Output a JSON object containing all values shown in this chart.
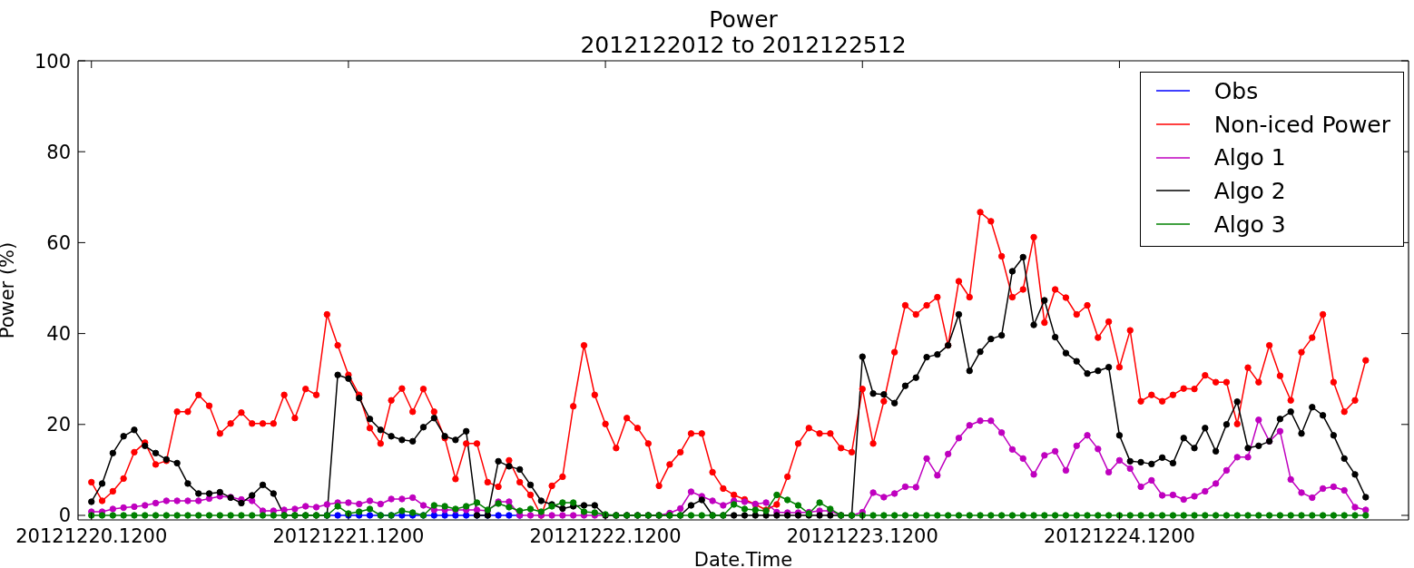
{
  "chart_data": {
    "type": "line",
    "title": "Power",
    "subtitle": "2012122012 to 2012122512",
    "xlabel": "Date.Time",
    "ylabel": "Power (%)",
    "x": [
      "2012-12-20T12:00",
      "2012-12-20T13:00",
      "2012-12-20T14:00",
      "2012-12-20T15:00",
      "2012-12-20T16:00",
      "2012-12-20T17:00",
      "2012-12-20T18:00",
      "2012-12-20T19:00",
      "2012-12-20T20:00",
      "2012-12-20T21:00",
      "2012-12-20T22:00",
      "2012-12-20T23:00",
      "2012-12-21T00:00",
      "2012-12-21T01:00",
      "2012-12-21T02:00",
      "2012-12-21T03:00",
      "2012-12-21T04:00",
      "2012-12-21T05:00",
      "2012-12-21T06:00",
      "2012-12-21T07:00",
      "2012-12-21T08:00",
      "2012-12-21T09:00",
      "2012-12-21T10:00",
      "2012-12-21T11:00",
      "2012-12-21T12:00",
      "2012-12-21T13:00",
      "2012-12-21T14:00",
      "2012-12-21T15:00",
      "2012-12-21T16:00",
      "2012-12-21T17:00",
      "2012-12-21T18:00",
      "2012-12-21T19:00",
      "2012-12-21T20:00",
      "2012-12-21T21:00",
      "2012-12-21T22:00",
      "2012-12-21T23:00",
      "2012-12-22T00:00",
      "2012-12-22T01:00",
      "2012-12-22T02:00",
      "2012-12-22T03:00",
      "2012-12-22T04:00",
      "2012-12-22T05:00",
      "2012-12-22T06:00",
      "2012-12-22T07:00",
      "2012-12-22T08:00",
      "2012-12-22T09:00",
      "2012-12-22T10:00",
      "2012-12-22T11:00",
      "2012-12-22T12:00",
      "2012-12-22T13:00",
      "2012-12-22T14:00",
      "2012-12-22T15:00",
      "2012-12-22T16:00",
      "2012-12-22T17:00",
      "2012-12-22T18:00",
      "2012-12-22T19:00",
      "2012-12-22T20:00",
      "2012-12-22T21:00",
      "2012-12-22T22:00",
      "2012-12-22T23:00",
      "2012-12-23T00:00",
      "2012-12-23T01:00",
      "2012-12-23T02:00",
      "2012-12-23T03:00",
      "2012-12-23T04:00",
      "2012-12-23T05:00",
      "2012-12-23T06:00",
      "2012-12-23T07:00",
      "2012-12-23T08:00",
      "2012-12-23T09:00",
      "2012-12-23T10:00",
      "2012-12-23T11:00",
      "2012-12-23T12:00",
      "2012-12-23T13:00",
      "2012-12-23T14:00",
      "2012-12-23T15:00",
      "2012-12-23T16:00",
      "2012-12-23T17:00",
      "2012-12-23T18:00",
      "2012-12-23T19:00",
      "2012-12-23T20:00",
      "2012-12-23T21:00",
      "2012-12-23T22:00",
      "2012-12-23T23:00",
      "2012-12-24T00:00",
      "2012-12-24T01:00",
      "2012-12-24T02:00",
      "2012-12-24T03:00",
      "2012-12-24T04:00",
      "2012-12-24T05:00",
      "2012-12-24T06:00",
      "2012-12-24T07:00",
      "2012-12-24T08:00",
      "2012-12-24T09:00",
      "2012-12-24T10:00",
      "2012-12-24T11:00",
      "2012-12-24T12:00",
      "2012-12-24T13:00",
      "2012-12-24T14:00",
      "2012-12-24T15:00",
      "2012-12-24T16:00",
      "2012-12-24T17:00",
      "2012-12-24T18:00",
      "2012-12-24T19:00",
      "2012-12-24T20:00",
      "2012-12-24T21:00",
      "2012-12-24T22:00",
      "2012-12-24T23:00",
      "2012-12-25T00:00",
      "2012-12-25T01:00",
      "2012-12-25T02:00",
      "2012-12-25T03:00",
      "2012-12-25T04:00",
      "2012-12-25T05:00",
      "2012-12-25T06:00",
      "2012-12-25T07:00",
      "2012-12-25T08:00",
      "2012-12-25T09:00",
      "2012-12-25T10:00",
      "2012-12-25T11:00"
    ],
    "xlim": [
      "2012-12-20T10:45",
      "2012-12-25T15:00"
    ],
    "xticks": [
      {
        "value": "2012-12-20T12:00",
        "label": "20121220.1200"
      },
      {
        "value": "2012-12-21T12:00",
        "label": "20121221.1200"
      },
      {
        "value": "2012-12-22T12:00",
        "label": "20121222.1200"
      },
      {
        "value": "2012-12-23T12:00",
        "label": "20121223.1200"
      },
      {
        "value": "2012-12-24T12:00",
        "label": "20121224.1200"
      }
    ],
    "ylim": [
      -1,
      100
    ],
    "yticks": [
      0,
      20,
      40,
      60,
      80,
      100
    ],
    "legend": "top right",
    "marker": "circle",
    "series": [
      {
        "name": "Obs",
        "color": "#0000ff",
        "values": [
          null,
          null,
          null,
          null,
          null,
          null,
          null,
          null,
          null,
          null,
          null,
          null,
          null,
          null,
          null,
          null,
          null,
          null,
          null,
          null,
          null,
          null,
          0,
          0,
          0,
          0,
          0,
          0,
          0,
          0,
          0,
          0,
          0,
          0,
          0,
          0,
          0,
          0,
          0,
          0,
          0,
          null,
          null,
          null,
          null,
          null,
          null,
          null,
          null,
          null,
          null,
          null,
          null,
          null,
          null,
          null,
          null,
          null,
          null,
          null,
          null,
          null,
          null,
          null,
          null,
          null,
          null,
          null,
          null,
          null,
          null,
          null,
          null,
          null,
          null,
          null,
          null,
          null,
          null,
          null,
          null,
          null,
          null,
          null,
          null,
          null,
          null,
          null,
          null,
          null,
          null,
          null,
          null,
          null,
          null,
          null,
          null,
          null,
          null,
          null,
          null,
          null,
          null,
          null,
          null,
          null,
          null,
          null,
          null,
          null,
          null,
          null,
          null,
          null,
          null,
          null,
          null,
          null,
          null,
          null
        ]
      },
      {
        "name": "Non-iced Power",
        "color": "#ff0000",
        "values": [
          7.3,
          3.2,
          5.3,
          8.1,
          13.9,
          16.0,
          11.2,
          12.0,
          22.8,
          22.8,
          26.5,
          24.1,
          18.0,
          20.2,
          22.6,
          20.2,
          20.2,
          20.2,
          26.5,
          21.4,
          27.8,
          26.5,
          44.2,
          37.4,
          30.9,
          26.5,
          19.2,
          15.8,
          25.3,
          27.9,
          22.8,
          27.8,
          22.8,
          17.0,
          8.0,
          15.8,
          15.8,
          7.3,
          6.3,
          12.1,
          7.3,
          4.5,
          0,
          6.5,
          8.5,
          24.0,
          37.4,
          26.5,
          20.1,
          14.8,
          21.4,
          19.2,
          15.8,
          6.5,
          11.2,
          13.9,
          18.0,
          18.0,
          9.5,
          5.9,
          4.5,
          3.5,
          2.4,
          1.2,
          2.4,
          8.5,
          15.8,
          19.2,
          18.0,
          18.0,
          14.8,
          13.9,
          27.8,
          15.8,
          25.1,
          35.9,
          46.2,
          44.2,
          46.2,
          48.0,
          37.4,
          51.5,
          48.0,
          66.7,
          64.7,
          57.0,
          48.0,
          49.7,
          61.2,
          42.4,
          49.7,
          47.9,
          44.2,
          46.2,
          39.1,
          42.6,
          32.6,
          40.7,
          25.1,
          26.5,
          25.1,
          26.5,
          27.9,
          27.8,
          30.8,
          29.3,
          29.3,
          20.1,
          32.5,
          29.3,
          37.4,
          30.7,
          25.3,
          35.9,
          39.1,
          44.2,
          29.3,
          22.8,
          25.3,
          34.1
        ]
      },
      {
        "name": "Algo 1",
        "color": "#bf00bf",
        "values": [
          0.8,
          0.8,
          1.4,
          1.7,
          1.9,
          2.2,
          2.7,
          3.2,
          3.2,
          3.2,
          3.2,
          3.7,
          4.2,
          4.0,
          3.5,
          3.2,
          1.0,
          1.0,
          1.2,
          1.4,
          2.0,
          1.8,
          2.4,
          2.8,
          2.8,
          2.5,
          3.2,
          2.5,
          3.6,
          3.6,
          3.9,
          2.2,
          1.2,
          1.2,
          1.2,
          1.2,
          1.2,
          1.0,
          3.0,
          3.0,
          0,
          0,
          0,
          0,
          0,
          0,
          0,
          0,
          0,
          0,
          0,
          0,
          0,
          0,
          0.5,
          1.5,
          5.2,
          4.2,
          3.2,
          2.2,
          3.2,
          3.0,
          2.5,
          2.8,
          0.7,
          0.6,
          0.6,
          0.7,
          1.0,
          1.0,
          0,
          0,
          0.7,
          5.0,
          4.0,
          4.8,
          6.3,
          6.2,
          12.5,
          8.8,
          13.5,
          17.0,
          19.8,
          20.8,
          20.8,
          18.2,
          14.5,
          12.5,
          9.0,
          13.2,
          14.1,
          9.9,
          15.3,
          17.6,
          14.6,
          9.5,
          12.1,
          10.3,
          6.3,
          7.7,
          4.4,
          4.5,
          3.5,
          4.2,
          5.3,
          7.0,
          9.9,
          12.8,
          12.8,
          21.0,
          16.3,
          18.5,
          7.9,
          5.0,
          3.9,
          5.9,
          6.3,
          5.5,
          1.8,
          1.2
        ]
      },
      {
        "name": "Algo 2",
        "color": "#000000",
        "values": [
          3.0,
          7.0,
          13.7,
          17.4,
          18.8,
          15.3,
          13.7,
          12.3,
          11.5,
          7.0,
          4.8,
          4.8,
          5.1,
          3.9,
          2.7,
          4.4,
          6.7,
          4.8,
          0,
          0,
          0,
          0,
          0,
          30.9,
          30.1,
          25.8,
          21.2,
          18.8,
          17.4,
          16.6,
          16.3,
          19.4,
          21.4,
          17.4,
          16.6,
          18.5,
          0,
          0,
          11.9,
          10.8,
          10.1,
          6.7,
          3.2,
          2.4,
          1.5,
          2.0,
          2.2,
          2.2,
          0,
          0,
          0,
          0,
          0,
          0,
          0,
          0,
          2.2,
          3.4,
          0,
          0,
          0,
          0,
          0,
          0,
          0,
          0,
          0,
          0,
          0,
          0,
          0,
          0,
          34.9,
          26.8,
          26.6,
          24.7,
          28.5,
          30.3,
          34.8,
          35.4,
          37.4,
          44.2,
          31.8,
          36.0,
          38.8,
          39.6,
          53.7,
          56.8,
          41.9,
          47.3,
          39.2,
          35.7,
          33.9,
          31.2,
          31.8,
          32.6,
          17.6,
          11.9,
          11.7,
          11.3,
          12.7,
          11.5,
          17.0,
          14.8,
          19.2,
          14.1,
          20.0,
          25.0,
          14.8,
          15.3,
          16.3,
          21.2,
          22.8,
          18.0,
          23.8,
          22.0,
          17.6,
          12.5,
          9.0,
          4.0
        ]
      },
      {
        "name": "Algo 3",
        "color": "#008000",
        "values": [
          0,
          0,
          0,
          0,
          0,
          0,
          0,
          0,
          0,
          0,
          0,
          0,
          0,
          0,
          0,
          0,
          0,
          0,
          0,
          0,
          0,
          0,
          0,
          2.0,
          0.4,
          0.8,
          1.4,
          0,
          0,
          1.0,
          0.6,
          0,
          2.2,
          2.0,
          1.4,
          2.0,
          2.8,
          1.2,
          2.6,
          1.8,
          1.0,
          1.4,
          0.8,
          2.0,
          2.8,
          2.8,
          0.8,
          0.6,
          0.2,
          0,
          0,
          0,
          0,
          0,
          0,
          0,
          0,
          0,
          0,
          0,
          2.4,
          1.4,
          1.2,
          1.0,
          4.5,
          3.4,
          2.2,
          0.4,
          2.8,
          1.4,
          0,
          0,
          0,
          0,
          0,
          0,
          0,
          0,
          0,
          0,
          0,
          0,
          0,
          0,
          0,
          0,
          0,
          0,
          0,
          0,
          0,
          0,
          0,
          0,
          0,
          0,
          0,
          0,
          0,
          0,
          0,
          0,
          0,
          0,
          0,
          0,
          0,
          0,
          0,
          0,
          0,
          0,
          0,
          0,
          0,
          0,
          0,
          0,
          0,
          0
        ]
      }
    ]
  }
}
